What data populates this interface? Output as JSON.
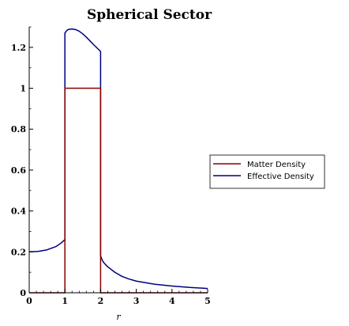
{
  "chart_data": {
    "type": "line",
    "title": "Spherical Sector",
    "xlabel": "r",
    "ylabel": "",
    "xlim": [
      0,
      5
    ],
    "ylim": [
      0,
      1.3
    ],
    "x_ticks": [
      "0",
      "1",
      "2",
      "3",
      "4",
      "5"
    ],
    "y_ticks": [
      "0.2",
      "0.4",
      "0.6",
      "0.8",
      "1",
      "1.2"
    ],
    "grid": false,
    "legend_position": "right",
    "series": [
      {
        "name": "Matter Density",
        "color": "#8b0000",
        "x": [
          0,
          1,
          1,
          2,
          2,
          5
        ],
        "y": [
          0,
          0,
          1,
          1,
          0,
          0
        ]
      },
      {
        "name": "Effective Density",
        "color": "#000080",
        "x": [
          0,
          0.25,
          0.5,
          0.75,
          0.9,
          1,
          1,
          1.05,
          1.1,
          1.2,
          1.3,
          1.4,
          1.5,
          1.6,
          1.7,
          1.8,
          1.9,
          2,
          2,
          2.05,
          2.1,
          2.2,
          2.4,
          2.6,
          2.8,
          3,
          3.5,
          4,
          4.5,
          5
        ],
        "y": [
          0.2,
          0.202,
          0.21,
          0.226,
          0.244,
          0.26,
          1.27,
          1.282,
          1.288,
          1.29,
          1.287,
          1.279,
          1.266,
          1.25,
          1.232,
          1.214,
          1.197,
          1.18,
          0.18,
          0.158,
          0.145,
          0.127,
          0.1,
          0.08,
          0.067,
          0.057,
          0.042,
          0.033,
          0.026,
          0.021
        ]
      }
    ]
  }
}
